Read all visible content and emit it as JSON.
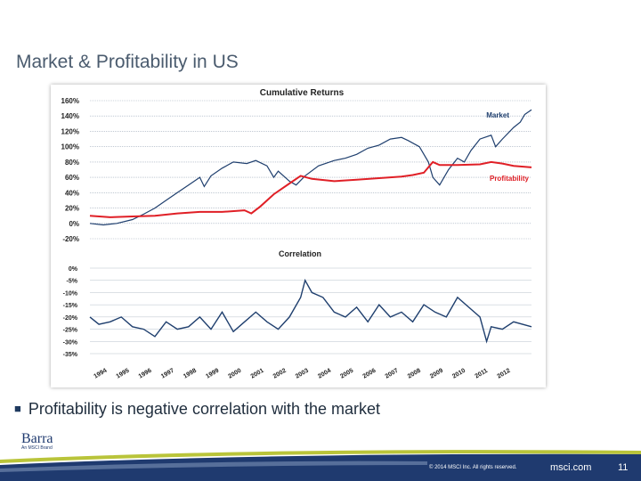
{
  "slide": {
    "title": "Market & Profitability in US",
    "bullet": "Profitability is negative correlation with the market",
    "footer": {
      "copyright": "© 2014 MSCI Inc. All rights reserved.",
      "site": "msci.com",
      "page": "11"
    },
    "logo": {
      "name": "Barra",
      "subtitle": "An MSCI Brand"
    }
  },
  "colors": {
    "market": "#1f3f6e",
    "profitability": "#e01f26",
    "correlation": "#1f3f6e",
    "footer_band": "#1f3a6f",
    "swoosh": "#b9c43a"
  },
  "chart_data": [
    {
      "type": "line",
      "title": "Cumulative Returns",
      "ylim": [
        -20,
        160
      ],
      "y_unit": "%",
      "y_ticks": [
        "160%",
        "140%",
        "120%",
        "100%",
        "80%",
        "60%",
        "40%",
        "20%",
        "0%",
        "-20%"
      ],
      "grid": true,
      "series": [
        {
          "name": "Market",
          "x": [
            1993.6,
            1994.2,
            1994.8,
            1995.5,
            1996.0,
            1996.5,
            1997.0,
            1997.5,
            1998.0,
            1998.5,
            1998.7,
            1999.0,
            1999.5,
            2000.0,
            2000.6,
            2001.0,
            2001.5,
            2001.8,
            2002.0,
            2002.5,
            2002.8,
            2003.2,
            2003.8,
            2004.5,
            2005.0,
            2005.5,
            2006.0,
            2006.5,
            2007.0,
            2007.5,
            2007.8,
            2008.3,
            2008.7,
            2008.9,
            2009.2,
            2009.6,
            2010.0,
            2010.3,
            2010.6,
            2011.0,
            2011.5,
            2011.7,
            2012.0,
            2012.5,
            2012.8,
            2013.0,
            2013.3
          ],
          "y": [
            0,
            -2,
            0,
            5,
            12,
            20,
            30,
            40,
            50,
            60,
            48,
            62,
            72,
            80,
            78,
            82,
            75,
            60,
            68,
            55,
            50,
            62,
            75,
            82,
            85,
            90,
            98,
            102,
            110,
            112,
            108,
            100,
            80,
            60,
            50,
            70,
            85,
            80,
            95,
            110,
            115,
            100,
            110,
            125,
            132,
            142,
            148
          ]
        },
        {
          "name": "Profitability",
          "x": [
            1993.6,
            1994.5,
            1995.5,
            1996.5,
            1997.5,
            1998.5,
            1999.5,
            2000.5,
            2000.8,
            2001.2,
            2001.8,
            2002.5,
            2003.0,
            2003.5,
            2004.5,
            2005.5,
            2006.5,
            2007.5,
            2008.0,
            2008.5,
            2008.9,
            2009.2,
            2010.0,
            2011.0,
            2011.5,
            2012.0,
            2012.5,
            2013.3
          ],
          "y": [
            10,
            8,
            9,
            10,
            13,
            15,
            15,
            17,
            13,
            22,
            38,
            52,
            62,
            58,
            55,
            57,
            59,
            61,
            63,
            66,
            80,
            76,
            76,
            77,
            80,
            78,
            75,
            73
          ]
        }
      ]
    },
    {
      "type": "line",
      "title": "Correlation",
      "ylim": [
        -35,
        0
      ],
      "y_unit": "%",
      "y_ticks": [
        "0%",
        "-5%",
        "-10%",
        "-15%",
        "-20%",
        "-25%",
        "-30%",
        "-35%"
      ],
      "x_ticks": [
        "1994",
        "1995",
        "1996",
        "1997",
        "1998",
        "1999",
        "2000",
        "2001",
        "2002",
        "2003",
        "2004",
        "2005",
        "2006",
        "2007",
        "2008",
        "2009",
        "2010",
        "2011",
        "2012"
      ],
      "series": [
        {
          "x": [
            1993.6,
            1994.0,
            1994.5,
            1995.0,
            1995.5,
            1996.0,
            1996.5,
            1997.0,
            1997.5,
            1998.0,
            1998.5,
            1999.0,
            1999.5,
            2000.0,
            2000.5,
            2001.0,
            2001.5,
            2002.0,
            2002.5,
            2003.0,
            2003.2,
            2003.5,
            2004.0,
            2004.5,
            2005.0,
            2005.5,
            2006.0,
            2006.5,
            2007.0,
            2007.5,
            2008.0,
            2008.5,
            2009.0,
            2009.5,
            2010.0,
            2010.5,
            2011.0,
            2011.3,
            2011.5,
            2012.0,
            2012.5,
            2013.3
          ],
          "y": [
            -20,
            -23,
            -22,
            -20,
            -24,
            -25,
            -28,
            -22,
            -25,
            -24,
            -20,
            -25,
            -18,
            -26,
            -22,
            -18,
            -22,
            -25,
            -20,
            -12,
            -5,
            -10,
            -12,
            -18,
            -20,
            -16,
            -22,
            -15,
            -20,
            -18,
            -22,
            -15,
            -18,
            -20,
            -12,
            -16,
            -20,
            -30,
            -24,
            -25,
            -22,
            -24
          ]
        }
      ]
    }
  ]
}
